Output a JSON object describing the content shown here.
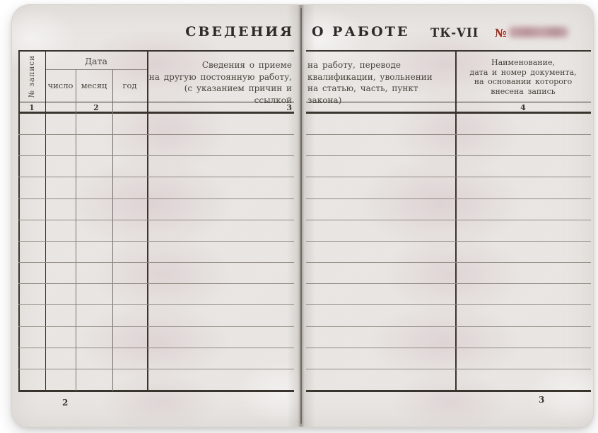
{
  "document": {
    "type_label": "трудовая книжка — разворот «Сведения о работе»",
    "title_left": "СВЕДЕНИЯ",
    "title_right": "О РАБОТЕ",
    "series": "ТК-VII",
    "number_sign": "№",
    "serial_redacted": true
  },
  "table": {
    "record_col_label": "№ записи",
    "date_group_label": "Дата",
    "date_sub_labels": [
      "число",
      "месяц",
      "год"
    ],
    "col3_left_lines": [
      "Сведения о приеме",
      "на другую постоянную работу,",
      "(с указанием причин и ссылкой"
    ],
    "col3_right_lines": [
      "на работу, переводе",
      "квалификации, увольнении",
      "на статью, часть, пункт закона)"
    ],
    "col4_lines": [
      "Наименование,",
      "дата и номер документа,",
      "на основании которого",
      "внесена запись"
    ],
    "column_numbers": [
      "1",
      "2",
      "3",
      "4"
    ],
    "body_rows": 13
  },
  "footer": {
    "left_page_number": "2",
    "right_page_number": "3"
  },
  "colors": {
    "accent_red": "#9e2f23",
    "paper": "#e9e6e3",
    "grid_dark": "#3a342e",
    "grid_light": "#8f8880"
  }
}
